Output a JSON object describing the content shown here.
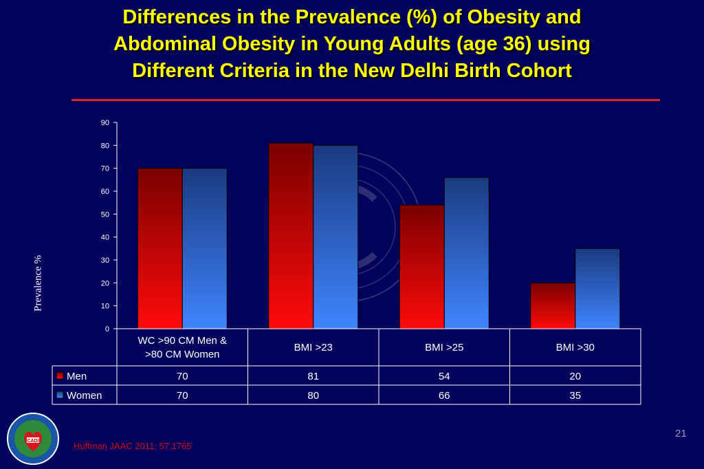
{
  "title_lines": [
    "Differences in the Prevalence (%) of Obesity and",
    "Abdominal Obesity in Young Adults (age 36) using",
    "Different  Criteria in the  New Delhi Birth Cohort"
  ],
  "slide_number": "21",
  "citation": "Huffman JAAC 2011; 57 1765",
  "chart_data": {
    "type": "bar",
    "categories": [
      "WC >90 CM Men & >80 CM Women",
      "BMI >23",
      "BMI >25",
      "BMI >30"
    ],
    "category_lines": [
      [
        "WC >90 CM Men &",
        ">80 CM Women"
      ],
      [
        "BMI >23"
      ],
      [
        "BMI >25"
      ],
      [
        "BMI >30"
      ]
    ],
    "series": [
      {
        "name": "Men",
        "values": [
          70,
          81,
          54,
          20
        ],
        "color": "#e8000f",
        "color_dark": "#7a0000"
      },
      {
        "name": "Women",
        "values": [
          70,
          80,
          66,
          35
        ],
        "color": "#3a7bff",
        "color_dark": "#1a3a80"
      }
    ],
    "ylabel": "Prevalence %",
    "ylim": [
      0,
      90
    ],
    "yticks": [
      "0",
      "10",
      "20",
      "30",
      "40",
      "50",
      "60",
      "70",
      "80",
      "90"
    ],
    "legend": "data-table",
    "grid": false
  },
  "colors": {
    "background": "#02025c",
    "title": "#ffff00",
    "rule": "#ff1a1a",
    "axis": "#ffffff"
  }
}
